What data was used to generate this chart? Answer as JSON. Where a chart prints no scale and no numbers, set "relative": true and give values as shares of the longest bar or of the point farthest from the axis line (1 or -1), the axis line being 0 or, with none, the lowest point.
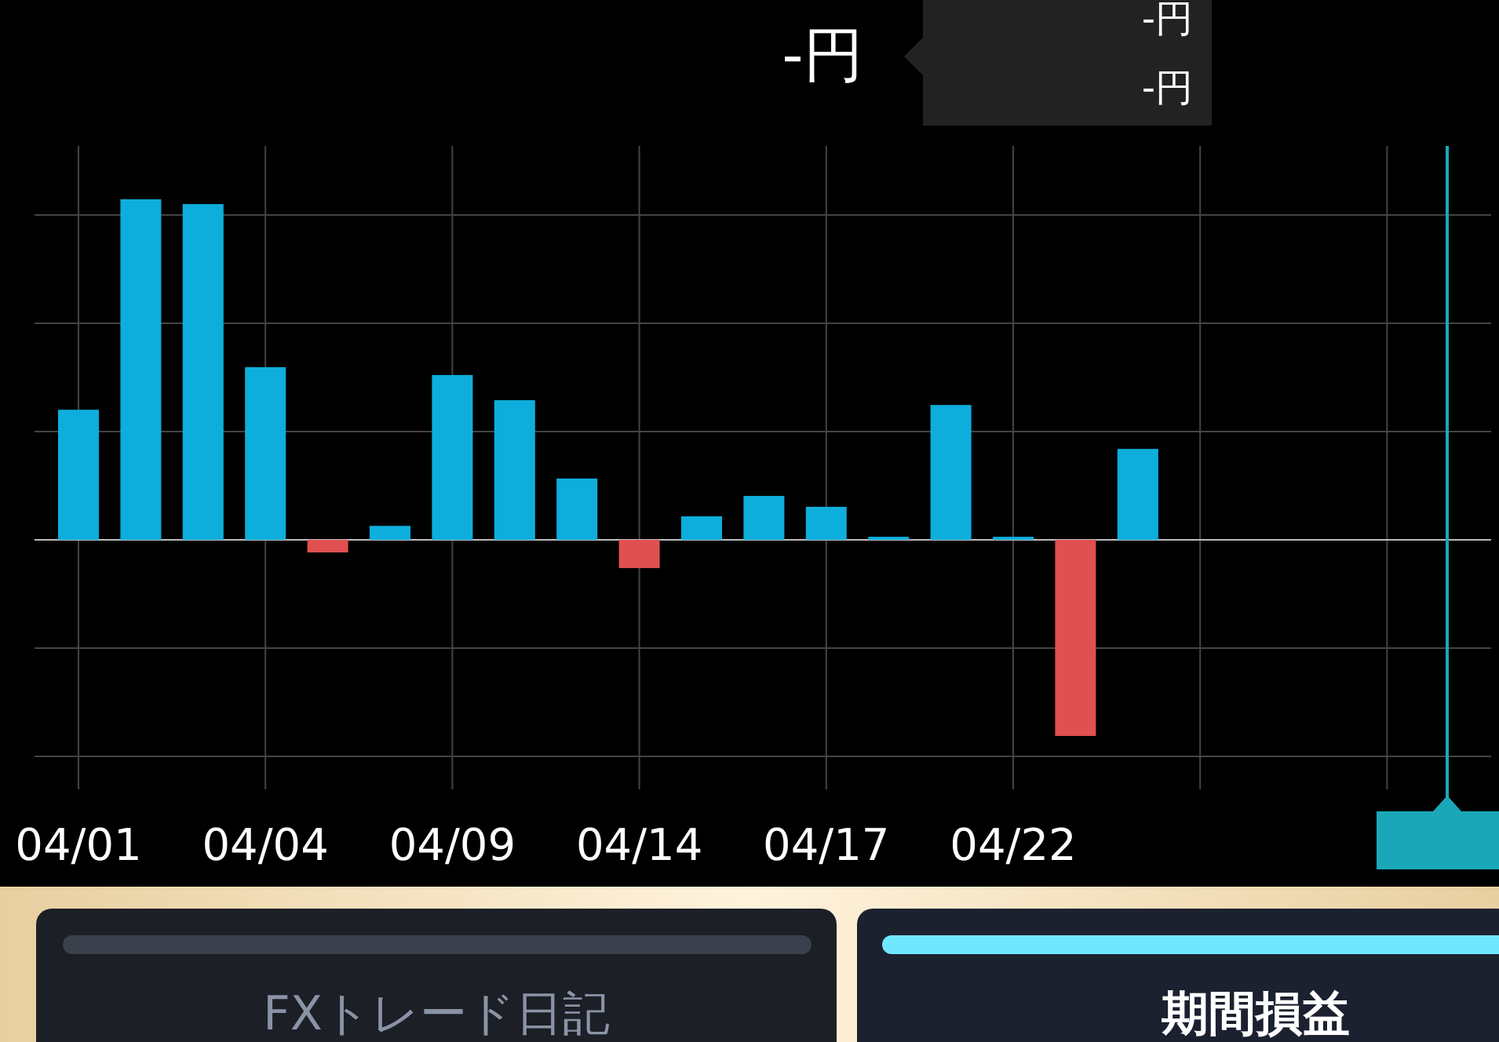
{
  "chart_data": {
    "type": "bar",
    "title": "-円",
    "categories": [
      "04/01",
      null,
      null,
      "04/04",
      null,
      null,
      "04/09",
      null,
      null,
      "04/14",
      null,
      null,
      "04/17",
      null,
      null,
      "04/22",
      null,
      null,
      null,
      null,
      null,
      null,
      null
    ],
    "values": [
      0.382,
      1,
      0.986,
      0.507,
      -0.037,
      0.041,
      0.484,
      0.41,
      0.18,
      -0.083,
      0.069,
      0.129,
      0.097,
      0.009,
      0.396,
      0.009,
      -0.576,
      0.267,
      null,
      null,
      null,
      null,
      null
    ],
    "colors": [
      "#0eaedc",
      "#0eaedc",
      "#0eaedc",
      "#0eaedc",
      "#e05050",
      "#0eaedc",
      "#0eaedc",
      "#0eaedc",
      "#0eaedc",
      "#e05050",
      "#0eaedc",
      "#0eaedc",
      "#0eaedc",
      "#0eaedc",
      "#0eaedc",
      "#0eaedc",
      "#e05050",
      "#0eaedc",
      null,
      null,
      null,
      null,
      null
    ],
    "relative": true,
    "grid": true,
    "annotations": [
      "-円",
      "-円",
      "FXトレード日記",
      "期間損益"
    ]
  }
}
